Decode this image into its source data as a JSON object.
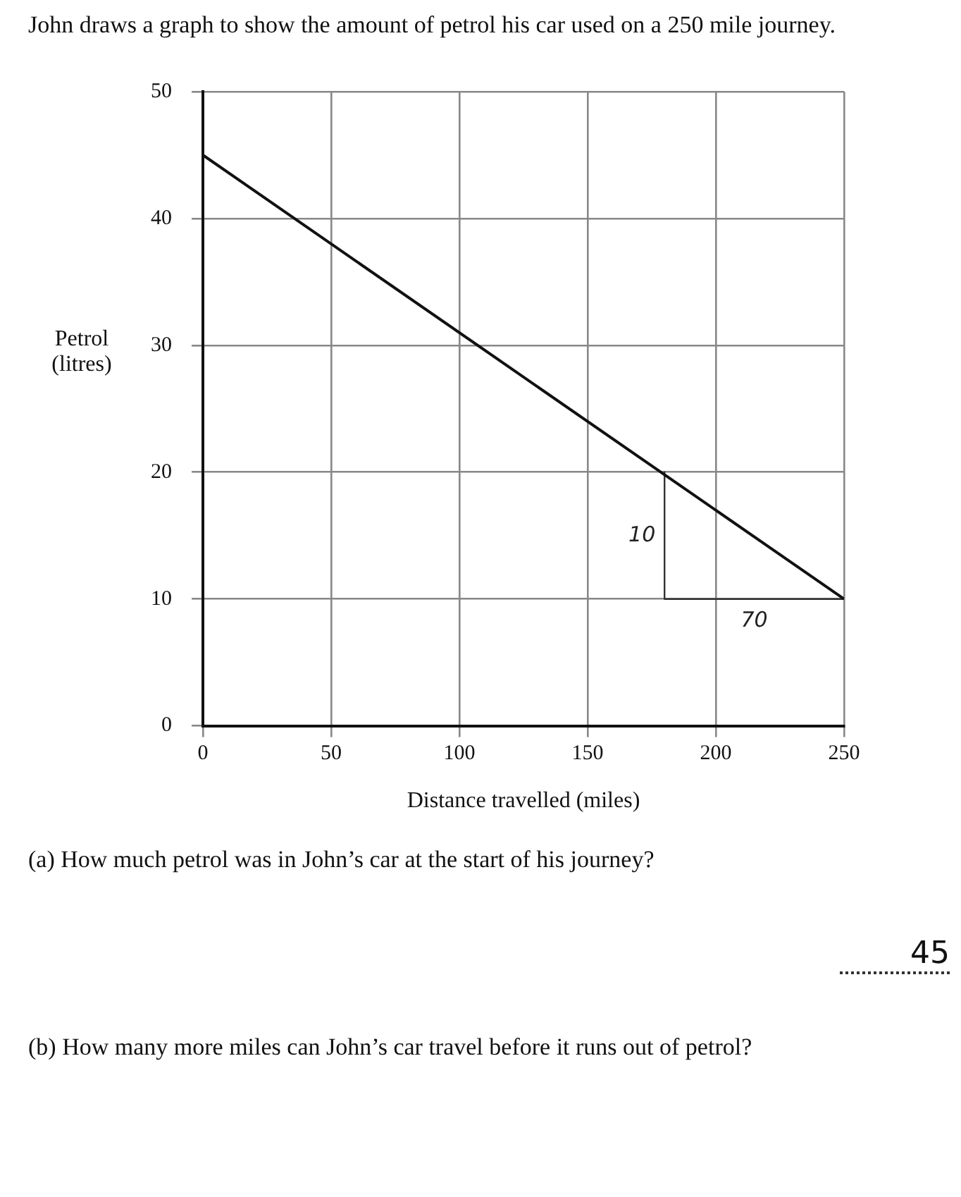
{
  "chart_data": {
    "type": "line",
    "title": "John draws a graph to show the amount of petrol his car used on a 250 mile journey.",
    "xlabel": "Distance travelled (miles)",
    "ylabel": "Petrol (litres)",
    "series": [
      {
        "color": "#111111",
        "x": [
          0,
          250
        ],
        "values": [
          45,
          10
        ]
      },
      {
        "color": "#333333",
        "x": [
          180,
          180,
          250
        ],
        "values": [
          20,
          10,
          10
        ]
      }
    ],
    "xlim": [
      0,
      250
    ],
    "ylim": [
      0,
      50
    ],
    "xticks": [
      0,
      50,
      100,
      150,
      200,
      250
    ],
    "yticks": [
      0,
      10,
      20,
      30,
      40,
      50
    ],
    "grid": true,
    "marker": "none",
    "line_style": "solid",
    "annotations": [
      "10",
      "70",
      "(a)  How much petrol was in John’s car at the start of his journey?",
      "45",
      "(b)  How many more miles can John’s car travel before it runs out of petrol?"
    ]
  }
}
